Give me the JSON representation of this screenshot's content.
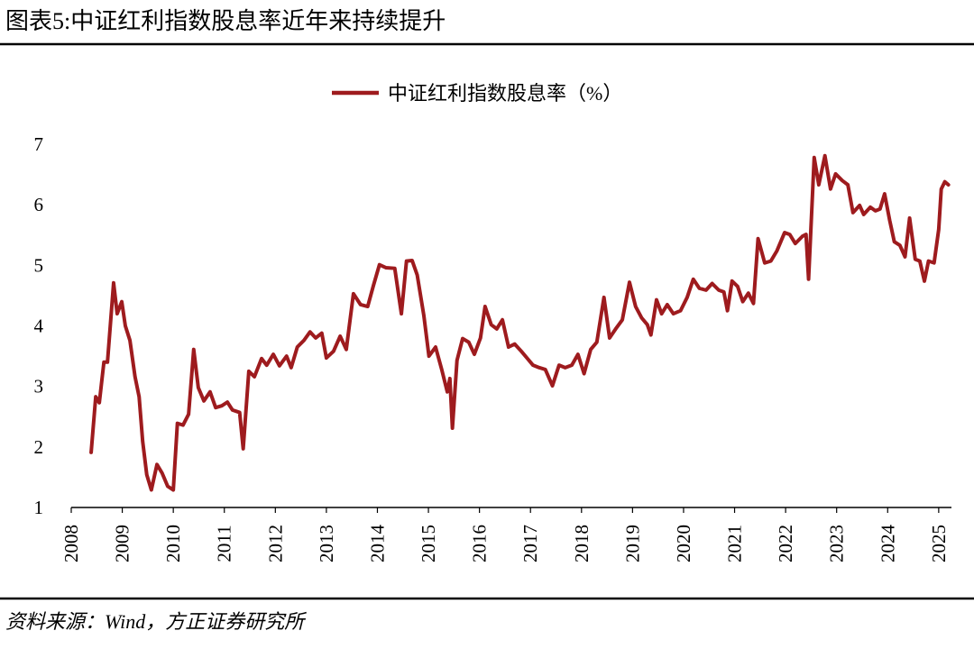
{
  "chart_data": {
    "type": "line",
    "title": "图表5:中证红利指数股息率近年来持续提升",
    "source": "资料来源：Wind，方正证券研究所",
    "x": [
      2008.39,
      2008.48,
      2008.55,
      2008.64,
      2008.71,
      2008.83,
      2008.9,
      2008.99,
      2009.06,
      2009.15,
      2009.25,
      2009.33,
      2009.4,
      2009.48,
      2009.57,
      2009.68,
      2009.78,
      2009.89,
      2010.0,
      2010.08,
      2010.19,
      2010.3,
      2010.4,
      2010.49,
      2010.6,
      2010.72,
      2010.83,
      2010.95,
      2011.06,
      2011.16,
      2011.3,
      2011.37,
      2011.48,
      2011.59,
      2011.73,
      2011.83,
      2011.96,
      2012.08,
      2012.22,
      2012.31,
      2012.43,
      2012.56,
      2012.68,
      2012.79,
      2012.91,
      2013.0,
      2013.14,
      2013.27,
      2013.39,
      2013.53,
      2013.67,
      2013.81,
      2013.92,
      2014.04,
      2014.17,
      2014.34,
      2014.47,
      2014.57,
      2014.68,
      2014.78,
      2014.91,
      2015.01,
      2015.14,
      2015.26,
      2015.37,
      2015.42,
      2015.47,
      2015.56,
      2015.67,
      2015.79,
      2015.9,
      2016.02,
      2016.11,
      2016.23,
      2016.34,
      2016.45,
      2016.57,
      2016.69,
      2016.82,
      2016.94,
      2017.05,
      2017.17,
      2017.29,
      2017.43,
      2017.56,
      2017.68,
      2017.81,
      2017.93,
      2018.05,
      2018.18,
      2018.3,
      2018.44,
      2018.55,
      2018.67,
      2018.8,
      2018.94,
      2019.06,
      2019.18,
      2019.29,
      2019.36,
      2019.47,
      2019.57,
      2019.68,
      2019.8,
      2019.94,
      2020.07,
      2020.19,
      2020.31,
      2020.44,
      2020.56,
      2020.69,
      2020.79,
      2020.86,
      2020.95,
      2021.06,
      2021.16,
      2021.27,
      2021.37,
      2021.46,
      2021.59,
      2021.71,
      2021.83,
      2021.98,
      2022.08,
      2022.19,
      2022.33,
      2022.4,
      2022.45,
      2022.56,
      2022.65,
      2022.77,
      2022.88,
      2022.98,
      2023.11,
      2023.22,
      2023.32,
      2023.45,
      2023.53,
      2023.66,
      2023.76,
      2023.85,
      2023.94,
      2024.04,
      2024.13,
      2024.24,
      2024.34,
      2024.43,
      2024.54,
      2024.63,
      2024.72,
      2024.8,
      2024.91,
      2025.0,
      2025.05,
      2025.12,
      2025.19
    ],
    "series": [
      {
        "name": "中证红利指数股息率（%）",
        "color": "#9e1b1e",
        "values": [
          1.91,
          2.83,
          2.73,
          3.4,
          3.4,
          4.71,
          4.2,
          4.4,
          4.0,
          3.76,
          3.16,
          2.83,
          2.09,
          1.54,
          1.29,
          1.71,
          1.57,
          1.35,
          1.29,
          2.39,
          2.36,
          2.54,
          3.61,
          2.98,
          2.76,
          2.91,
          2.65,
          2.68,
          2.74,
          2.61,
          2.57,
          1.97,
          3.25,
          3.16,
          3.46,
          3.35,
          3.53,
          3.34,
          3.5,
          3.31,
          3.65,
          3.76,
          3.9,
          3.8,
          3.88,
          3.47,
          3.58,
          3.83,
          3.61,
          4.53,
          4.35,
          4.32,
          4.66,
          5.01,
          4.96,
          4.95,
          4.2,
          5.07,
          5.08,
          4.84,
          4.17,
          3.5,
          3.65,
          3.28,
          2.91,
          3.13,
          2.31,
          3.43,
          3.79,
          3.73,
          3.53,
          3.8,
          4.32,
          4.02,
          3.95,
          4.1,
          3.65,
          3.7,
          3.58,
          3.46,
          3.35,
          3.31,
          3.28,
          3.01,
          3.35,
          3.31,
          3.35,
          3.53,
          3.21,
          3.61,
          3.73,
          4.47,
          3.8,
          3.95,
          4.1,
          4.72,
          4.32,
          4.13,
          4.02,
          3.85,
          4.43,
          4.2,
          4.35,
          4.2,
          4.25,
          4.47,
          4.77,
          4.62,
          4.59,
          4.7,
          4.59,
          4.56,
          4.25,
          4.74,
          4.65,
          4.4,
          4.54,
          4.37,
          5.44,
          5.04,
          5.07,
          5.24,
          5.54,
          5.51,
          5.36,
          5.48,
          5.51,
          4.77,
          6.78,
          6.33,
          6.81,
          6.26,
          6.51,
          6.4,
          6.33,
          5.87,
          5.99,
          5.84,
          5.96,
          5.9,
          5.93,
          6.18,
          5.74,
          5.39,
          5.33,
          5.14,
          5.78,
          5.1,
          5.07,
          4.74,
          5.07,
          5.04,
          5.59,
          6.26,
          6.38,
          6.33
        ]
      }
    ],
    "xlim": [
      2008,
      2025.25
    ],
    "xticks": [
      2008,
      2009,
      2010,
      2011,
      2012,
      2013,
      2014,
      2015,
      2016,
      2017,
      2018,
      2019,
      2020,
      2021,
      2022,
      2023,
      2024,
      2025
    ],
    "ylim": [
      1,
      7
    ],
    "yticks": [
      1,
      2,
      3,
      4,
      5,
      6,
      7
    ],
    "grid": false,
    "legend": "top"
  }
}
